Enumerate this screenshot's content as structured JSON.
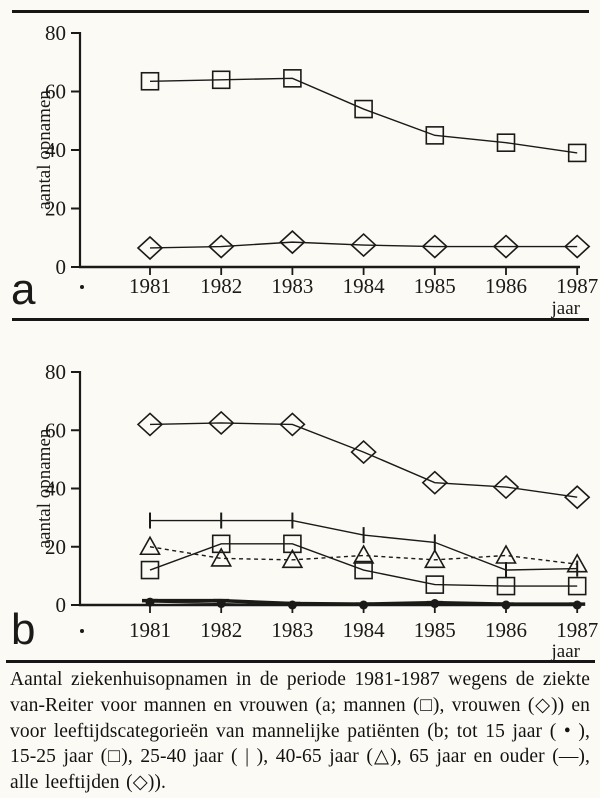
{
  "figure": {
    "panels": [
      {
        "label": "a"
      },
      {
        "label": "b"
      }
    ]
  },
  "caption": {
    "text": "Aantal ziekenhuisopnamen in de periode 1981-1987 wegens de ziekte van-Reiter voor mannen en vrouwen (a; mannen (□), vrouwen (◇)) en voor leeftijdscategorieën van mannelijke patiënten (b; tot 15 jaar ( • ), 15-25 jaar (□), 25-40 jaar ( | ), 40-65 jaar (△), 65 jaar en ouder (—), alle leeftijden (◇))."
  },
  "colors": {
    "ink": "#1b1a18",
    "paper": "#fbfaf5"
  },
  "chart_data": [
    {
      "type": "line",
      "panel": "a",
      "title": "",
      "xlabel": "jaar",
      "ylabel": "aantal opnamen",
      "x": [
        1981,
        1982,
        1983,
        1984,
        1985,
        1986,
        1987
      ],
      "ylim": [
        0,
        80
      ],
      "yticks": [
        0,
        20,
        40,
        60,
        80
      ],
      "grid": false,
      "legend": "none",
      "series": [
        {
          "name": "mannen",
          "marker": "square",
          "linestyle": "solid",
          "linewidth": 1.4,
          "values": [
            63.5,
            64,
            64.5,
            54,
            45,
            42.5,
            39
          ]
        },
        {
          "name": "vrouwen",
          "marker": "diamond",
          "linestyle": "solid",
          "linewidth": 1.4,
          "values": [
            6.5,
            7,
            8.5,
            7.5,
            7,
            7,
            7
          ]
        }
      ]
    },
    {
      "type": "line",
      "panel": "b",
      "title": "",
      "xlabel": "jaar",
      "ylabel": "aantal opnamen",
      "x": [
        1981,
        1982,
        1983,
        1984,
        1985,
        1986,
        1987
      ],
      "ylim": [
        0,
        80
      ],
      "yticks": [
        0,
        20,
        40,
        60,
        80
      ],
      "grid": false,
      "legend": "none",
      "series": [
        {
          "name": "25-40 jaar",
          "marker": "vbar",
          "linestyle": "solid",
          "linewidth": 1.4,
          "values": [
            29,
            29,
            29,
            24,
            21.5,
            12,
            12.5
          ]
        },
        {
          "name": "40-65 jaar",
          "marker": "triangle",
          "linestyle": "dashed",
          "linewidth": 1.4,
          "values": [
            20,
            16,
            15.5,
            17,
            15.5,
            17,
            14
          ]
        },
        {
          "name": "15-25 jaar",
          "marker": "square",
          "linestyle": "solid",
          "linewidth": 1.4,
          "values": [
            12,
            21,
            21,
            12,
            7,
            6.5,
            6.5
          ]
        },
        {
          "name": "alle leeftijden",
          "marker": "diamond",
          "linestyle": "solid",
          "linewidth": 1.4,
          "values": [
            62,
            62.5,
            62,
            52.5,
            42,
            40.5,
            37
          ]
        },
        {
          "name": "65 jaar en ouder",
          "marker": "dash",
          "linestyle": "solid",
          "linewidth": 3.5,
          "values": [
            1.5,
            1.5,
            0.5,
            0.3,
            0.8,
            0.3,
            0.3
          ]
        },
        {
          "name": "tot 15 jaar",
          "marker": "dot",
          "linestyle": "solid",
          "linewidth": 1.2,
          "values": [
            1,
            0.5,
            0,
            0,
            0.5,
            0,
            0
          ]
        }
      ]
    }
  ]
}
